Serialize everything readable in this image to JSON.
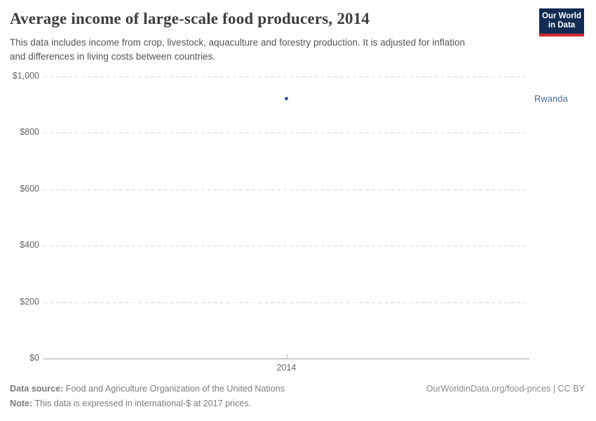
{
  "header": {
    "title": "Average income of large-scale food producers, 2014",
    "subtitle_lines": [
      "This data includes income from crop, livestock, aquaculture and forestry production. It is adjusted for inflation",
      "and differences in living costs between countries."
    ],
    "logo": {
      "line1": "Our World",
      "line2": "in Data"
    }
  },
  "chart_data": {
    "type": "scatter",
    "title": "Average income of large-scale food producers, 2014",
    "x": [
      2014
    ],
    "x_tick_labels": [
      "2014"
    ],
    "series": [
      {
        "name": "Rwanda",
        "values": [
          921
        ],
        "color": "#3c5a96"
      }
    ],
    "y_ticks": [
      0,
      200,
      400,
      600,
      800,
      1000
    ],
    "y_tick_labels": [
      "$0",
      "$200",
      "$400",
      "$600",
      "$800",
      "$1,000"
    ],
    "ylim": [
      0,
      1000
    ],
    "grid": "horizontal-dashed",
    "legend_position": "entity-label-right"
  },
  "colors": {
    "point": "#3c5a96",
    "entity_label": "#4c6a9c",
    "logo_bg": "#112b52",
    "logo_accent": "#d7282e",
    "gridline": "#d9d9d9",
    "axis": "#a0a0a0"
  },
  "footer": {
    "data_source_label": "Data source:",
    "data_source_text": " Food and Agriculture Organization of the United Nations",
    "note_label": "Note:",
    "note_text": " This data is expressed in international-$ at 2017 prices.",
    "attribution": "OurWorldinData.org/food-prices | CC BY"
  }
}
